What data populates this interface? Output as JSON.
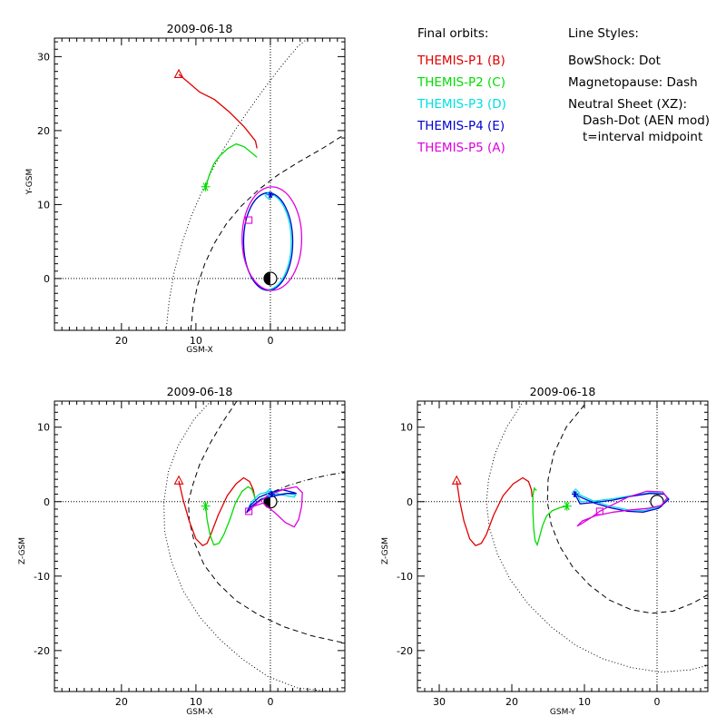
{
  "legend": {
    "orbits_heading": "Final orbits:",
    "styles_heading": "Line Styles:",
    "probes": [
      {
        "label": "THEMIS-P1 (B)",
        "color": "#e00000"
      },
      {
        "label": "THEMIS-P2 (C)",
        "color": "#00dd00"
      },
      {
        "label": "THEMIS-P3 (D)",
        "color": "#00e0e0"
      },
      {
        "label": "THEMIS-P4 (E)",
        "color": "#0000d0"
      },
      {
        "label": "THEMIS-P5 (A)",
        "color": "#e000e0"
      }
    ],
    "styles": [
      "BowShock: Dot",
      "Magnetopause: Dash",
      "Neutral Sheet (XZ):",
      "Dash-Dot (AEN mod)",
      "t=interval midpoint"
    ]
  },
  "chart_data": [
    {
      "type": "line",
      "panel": "XY",
      "title": "2009-06-18",
      "xlabel": "GSM-X",
      "ylabel": "Y-GSM",
      "xlim": [
        29,
        -10
      ],
      "ylim": [
        -7,
        32.5
      ],
      "xticks": [
        20,
        10,
        0
      ],
      "yticks": [
        0,
        10,
        20,
        30
      ],
      "series": [
        {
          "name": "THEMIS-P1 (B)",
          "color": "#e00000",
          "x": [
            12.3,
            11.0,
            9.5,
            7.5,
            5.5,
            3.5,
            2.0,
            1.8
          ],
          "y": [
            27.6,
            26.5,
            25.2,
            24.2,
            22.5,
            20.5,
            18.6,
            17.6
          ]
        },
        {
          "name": "THEMIS-P2 (C)",
          "color": "#00dd00",
          "x": [
            8.7,
            8.2,
            7.6,
            6.8,
            5.7,
            4.6,
            3.5,
            1.8
          ],
          "y": [
            12.4,
            14.0,
            15.5,
            16.6,
            17.6,
            18.2,
            17.8,
            16.4
          ]
        },
        {
          "name": "THEMIS-P3 (D)",
          "color": "#00e0e0",
          "ellipse": {
            "cx": 0.4,
            "cy": 5.0,
            "rx": 3.2,
            "ry": 6.5
          }
        },
        {
          "name": "THEMIS-P4 (E)",
          "color": "#0000d0",
          "ellipse": {
            "cx": 0.3,
            "cy": 5.0,
            "rx": 3.3,
            "ry": 6.6
          }
        },
        {
          "name": "THEMIS-P5 (A)",
          "color": "#e000e0",
          "ellipse": {
            "cx": -0.2,
            "cy": 5.4,
            "rx": 4.0,
            "ry": 7.0
          }
        }
      ],
      "markers": [
        {
          "series": "THEMIS-P1 (B)",
          "shape": "triangle",
          "x": 12.3,
          "y": 27.6
        },
        {
          "series": "THEMIS-P2 (C)",
          "shape": "asterisk",
          "x": 8.7,
          "y": 12.4
        },
        {
          "series": "THEMIS-P3 (D)",
          "shape": "diamond",
          "x": 0.2,
          "y": 11.2
        },
        {
          "series": "THEMIS-P4 (E)",
          "shape": "star",
          "x": 0.0,
          "y": 11.3
        },
        {
          "series": "THEMIS-P5 (A)",
          "shape": "square",
          "x": 2.9,
          "y": 7.9
        }
      ],
      "bowshock_dot": {
        "x": [
          14.0,
          13.6,
          12.9,
          11.8,
          10.6,
          9.3,
          7.9,
          6.4,
          4.8,
          3.1,
          1.4,
          -0.3,
          -2.1,
          -3.8,
          -5.1
        ],
        "y": [
          -7.0,
          -3.0,
          1.0,
          5.0,
          8.5,
          11.5,
          14.5,
          17.3,
          20.0,
          22.5,
          24.9,
          27.2,
          29.5,
          31.5,
          32.5
        ]
      },
      "magnetopause_dash": {
        "x": [
          10.7,
          10.4,
          9.8,
          8.8,
          7.5,
          5.9,
          3.9,
          1.6,
          -1.0,
          -3.9,
          -7.0,
          -10.0
        ],
        "y": [
          -7.0,
          -4.0,
          -1.0,
          2.0,
          4.8,
          7.4,
          9.8,
          12.0,
          14.0,
          15.8,
          17.6,
          19.5
        ]
      }
    },
    {
      "type": "line",
      "panel": "XZ",
      "title": "2009-06-18",
      "xlabel": "GSM-X",
      "ylabel": "Z-GSM",
      "xlim": [
        29,
        -10
      ],
      "ylim": [
        -25.5,
        13.5
      ],
      "xticks": [
        20,
        10,
        0
      ],
      "yticks": [
        10,
        0,
        -10,
        -20
      ],
      "series": [
        {
          "name": "THEMIS-P1 (B)",
          "color": "#e00000",
          "x": [
            12.3,
            11.7,
            10.9,
            10.0,
            9.1,
            8.5,
            8.0,
            7.0,
            5.8,
            4.6,
            3.6,
            2.8,
            2.3,
            2.1
          ],
          "y": [
            2.8,
            0.2,
            -2.6,
            -5.0,
            -5.9,
            -5.6,
            -4.4,
            -1.8,
            0.8,
            2.4,
            3.2,
            2.7,
            1.6,
            0.6
          ]
        },
        {
          "name": "THEMIS-P2 (C)",
          "color": "#00dd00",
          "x": [
            8.7,
            8.5,
            8.1,
            7.6,
            6.9,
            6.2,
            5.4,
            4.7,
            3.8,
            3.0,
            2.5,
            2.2,
            2.0
          ],
          "y": [
            -0.6,
            -2.4,
            -4.5,
            -5.8,
            -5.6,
            -4.3,
            -2.3,
            -0.2,
            1.4,
            2.0,
            1.7,
            0.9,
            0.2
          ]
        },
        {
          "name": "THEMIS-P3 (D)",
          "color": "#00e0e0",
          "x": [
            3.1,
            2.5,
            1.2,
            -0.5,
            -2.2,
            -3.4,
            -3.2,
            -1.6,
            0.0,
            1.5,
            2.6,
            3.1
          ],
          "y": [
            -1.3,
            -0.6,
            0.4,
            0.9,
            1.1,
            0.9,
            0.6,
            0.9,
            1.4,
            1.0,
            -0.1,
            -1.3
          ]
        },
        {
          "name": "THEMIS-P4 (E)",
          "color": "#0000d0",
          "x": [
            3.2,
            2.6,
            1.3,
            -0.6,
            -2.3,
            -3.5,
            -3.2,
            -1.6,
            0.0,
            1.5,
            2.7,
            3.2
          ],
          "y": [
            -1.5,
            -0.7,
            0.3,
            0.8,
            1.1,
            1.1,
            1.2,
            1.6,
            1.2,
            0.6,
            -0.5,
            -1.5
          ]
        },
        {
          "name": "THEMIS-P5 (A)",
          "color": "#e000e0",
          "x": [
            2.9,
            1.8,
            0.0,
            -2.0,
            -3.5,
            -4.3,
            -4.2,
            -3.8,
            -3.2,
            -2.0,
            -0.5,
            1.0,
            2.2,
            2.9
          ],
          "y": [
            -1.3,
            -0.2,
            1.0,
            1.7,
            2.0,
            1.2,
            -0.6,
            -2.4,
            -3.4,
            -2.8,
            -1.4,
            -0.2,
            -0.6,
            -1.3
          ]
        }
      ],
      "markers": [
        {
          "series": "THEMIS-P1 (B)",
          "shape": "triangle",
          "x": 12.3,
          "y": 2.8
        },
        {
          "series": "THEMIS-P2 (C)",
          "shape": "asterisk",
          "x": 8.7,
          "y": -0.6
        },
        {
          "series": "THEMIS-P3 (D)",
          "shape": "diamond",
          "x": 0.1,
          "y": 1.2
        },
        {
          "series": "THEMIS-P4 (E)",
          "shape": "star",
          "x": -0.2,
          "y": 1.0
        },
        {
          "series": "THEMIS-P5 (A)",
          "shape": "square",
          "x": 2.9,
          "y": -1.3
        }
      ],
      "bowshock_dot": {
        "x": [
          8.0,
          10.3,
          12.4,
          13.7,
          14.3,
          14.2,
          13.3,
          11.7,
          9.5,
          6.8,
          3.7,
          0.3,
          -3.6,
          -7.8
        ],
        "y": [
          13.5,
          11.0,
          7.5,
          4.0,
          0.0,
          -4.0,
          -8.0,
          -12.0,
          -15.5,
          -18.5,
          -21.2,
          -23.5,
          -25.0,
          -25.5
        ]
      },
      "magnetopause_dash": {
        "x": [
          4.5,
          6.2,
          8.0,
          9.5,
          10.5,
          11.0,
          10.9,
          10.2,
          8.9,
          7.0,
          4.6,
          1.6,
          -1.8,
          -5.5,
          -10.0
        ],
        "y": [
          13.5,
          11.0,
          8.0,
          5.0,
          2.0,
          0.0,
          -2.5,
          -5.5,
          -8.5,
          -11.0,
          -13.3,
          -15.2,
          -16.8,
          -18.0,
          -19.0
        ]
      },
      "neutral_sheet_dashdot": {
        "x": [
          1.0,
          -0.5,
          -2.5,
          -4.5,
          -6.5,
          -8.5,
          -10.0
        ],
        "y": [
          0.8,
          1.4,
          2.2,
          2.8,
          3.3,
          3.7,
          3.9
        ]
      }
    },
    {
      "type": "line",
      "panel": "YZ",
      "title": "2009-06-18",
      "xlabel": "GSM-Y",
      "ylabel": "Z-GSM",
      "xlim": [
        33,
        -7
      ],
      "ylim": [
        -25.5,
        13.5
      ],
      "xticks": [
        30,
        20,
        10,
        0
      ],
      "yticks": [
        10,
        0,
        -10,
        -20
      ],
      "series": [
        {
          "name": "THEMIS-P1 (B)",
          "color": "#e00000",
          "x": [
            27.6,
            27.2,
            26.6,
            25.8,
            25.0,
            24.2,
            23.5,
            22.5,
            21.2,
            19.8,
            18.5,
            17.7,
            17.3,
            17.2
          ],
          "y": [
            2.8,
            0.2,
            -2.6,
            -5.0,
            -5.9,
            -5.6,
            -4.4,
            -1.8,
            0.8,
            2.4,
            3.2,
            2.7,
            1.6,
            0.6
          ]
        },
        {
          "name": "THEMIS-P2 (C)",
          "color": "#00dd00",
          "x": [
            12.4,
            13.3,
            14.4,
            15.2,
            15.8,
            16.2,
            16.5,
            16.8,
            17.0,
            17.1,
            17.1,
            16.9,
            16.6
          ],
          "y": [
            -0.6,
            -0.8,
            -1.2,
            -1.9,
            -3.3,
            -4.8,
            -5.8,
            -5.2,
            -3.5,
            -1.2,
            0.8,
            1.8,
            1.5
          ]
        },
        {
          "name": "THEMIS-P3 (D)",
          "color": "#00e0e0",
          "x": [
            11.2,
            10.2,
            8.5,
            6.5,
            4.0,
            1.8,
            -0.3,
            -1.6,
            -0.9,
            1.0,
            3.5,
            6.0,
            8.5,
            10.5,
            11.2
          ],
          "y": [
            1.2,
            0.7,
            0.0,
            -0.6,
            -1.1,
            -1.2,
            -0.7,
            0.4,
            1.1,
            1.2,
            0.8,
            0.4,
            0.1,
            0.0,
            1.2
          ]
        },
        {
          "name": "THEMIS-P4 (E)",
          "color": "#0000d0",
          "x": [
            11.3,
            10.3,
            8.6,
            6.6,
            4.1,
            1.9,
            -0.2,
            -1.6,
            -1.0,
            1.0,
            3.6,
            6.1,
            8.6,
            10.6,
            11.3
          ],
          "y": [
            1.0,
            0.5,
            -0.2,
            -0.8,
            -1.3,
            -1.4,
            -0.9,
            0.3,
            1.0,
            1.1,
            0.7,
            0.2,
            -0.1,
            -0.3,
            1.0
          ]
        },
        {
          "name": "THEMIS-P5 (A)",
          "color": "#e000e0",
          "x": [
            7.9,
            9.0,
            10.3,
            11.0,
            10.3,
            8.5,
            6.0,
            3.5,
            1.3,
            -0.6,
            -1.4,
            -0.8,
            1.4,
            4.0,
            6.5,
            7.9
          ],
          "y": [
            -1.3,
            -2.1,
            -2.9,
            -3.3,
            -2.6,
            -1.9,
            -1.4,
            -1.1,
            -0.9,
            -0.5,
            0.5,
            1.3,
            1.4,
            0.6,
            -0.6,
            -1.3
          ]
        }
      ],
      "markers": [
        {
          "series": "THEMIS-P1 (B)",
          "shape": "triangle",
          "x": 27.6,
          "y": 2.8
        },
        {
          "series": "THEMIS-P2 (C)",
          "shape": "asterisk",
          "x": 12.4,
          "y": -0.6
        },
        {
          "series": "THEMIS-P3 (D)",
          "shape": "diamond",
          "x": 11.2,
          "y": 1.2
        },
        {
          "series": "THEMIS-P4 (E)",
          "shape": "star",
          "x": 11.3,
          "y": 1.0
        },
        {
          "series": "THEMIS-P5 (A)",
          "shape": "square",
          "x": 7.9,
          "y": -1.3
        }
      ],
      "bowshock_dot": {
        "x": [
          18.4,
          20.7,
          22.3,
          23.2,
          23.5,
          23.1,
          22.0,
          20.2,
          17.7,
          14.6,
          11.2,
          7.5,
          3.5,
          -0.5,
          -4.5,
          -7.0
        ],
        "y": [
          13.5,
          10.0,
          6.5,
          3.0,
          0.0,
          -3.5,
          -7.0,
          -10.5,
          -13.8,
          -16.8,
          -19.3,
          -21.1,
          -22.3,
          -22.9,
          -22.6,
          -22.0
        ]
      },
      "magnetopause_dash": {
        "x": [
          10.0,
          12.5,
          14.2,
          15.0,
          15.1,
          14.6,
          13.4,
          11.6,
          9.3,
          6.6,
          3.6,
          0.7,
          -2.2,
          -5.0,
          -7.0
        ],
        "y": [
          13.0,
          10.0,
          6.5,
          3.0,
          0.0,
          -3.0,
          -6.0,
          -8.8,
          -11.2,
          -13.2,
          -14.5,
          -15.0,
          -14.7,
          -13.6,
          -12.5
        ]
      }
    }
  ]
}
